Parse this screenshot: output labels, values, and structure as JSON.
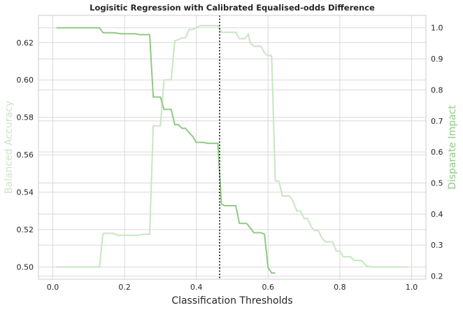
{
  "chart_data": {
    "type": "line",
    "title": "Logisitic Regression with Calibrated Equalised-odds Difference",
    "xlabel": "Classification Thresholds",
    "ylabel_left": "Balanced Accuracy",
    "ylabel_right": "Disparate Impact",
    "xlim": [
      -0.04,
      1.04
    ],
    "ylim_left": [
      0.4935,
      0.6345
    ],
    "ylim_right": [
      0.19,
      1.04
    ],
    "x_ticks": [
      "0.0",
      "0.2",
      "0.4",
      "0.6",
      "0.8",
      "1.0"
    ],
    "y_left_ticks": [
      "0.50",
      "0.52",
      "0.54",
      "0.56",
      "0.58",
      "0.60",
      "0.62"
    ],
    "y_right_ticks": [
      "0.2",
      "0.3",
      "0.4",
      "0.5",
      "0.6",
      "0.7",
      "0.8",
      "0.9",
      "1.0"
    ],
    "grid": true,
    "threshold_marker": 0.465,
    "series": [
      {
        "axis": "left",
        "color": "#c7e6c1",
        "points": [
          [
            0.01,
            0.5
          ],
          [
            0.13,
            0.5
          ],
          [
            0.14,
            0.518
          ],
          [
            0.17,
            0.518
          ],
          [
            0.18,
            0.517
          ],
          [
            0.24,
            0.517
          ],
          [
            0.25,
            0.5175
          ],
          [
            0.27,
            0.5175
          ],
          [
            0.28,
            0.5755
          ],
          [
            0.3,
            0.5755
          ],
          [
            0.31,
            0.6
          ],
          [
            0.33,
            0.6
          ],
          [
            0.34,
            0.621
          ],
          [
            0.35,
            0.6215
          ],
          [
            0.36,
            0.6225
          ],
          [
            0.37,
            0.6225
          ],
          [
            0.38,
            0.627
          ],
          [
            0.39,
            0.627
          ],
          [
            0.4,
            0.628
          ],
          [
            0.41,
            0.629
          ],
          [
            0.45,
            0.629
          ],
          [
            0.46,
            0.629
          ],
          [
            0.47,
            0.6255
          ],
          [
            0.51,
            0.6255
          ],
          [
            0.52,
            0.622
          ],
          [
            0.535,
            0.622
          ],
          [
            0.545,
            0.6245
          ],
          [
            0.55,
            0.62
          ],
          [
            0.56,
            0.618
          ],
          [
            0.575,
            0.618
          ],
          [
            0.58,
            0.618
          ],
          [
            0.59,
            0.6145
          ],
          [
            0.6,
            0.613
          ],
          [
            0.61,
            0.613
          ],
          [
            0.62,
            0.546
          ],
          [
            0.63,
            0.546
          ],
          [
            0.64,
            0.538
          ],
          [
            0.66,
            0.538
          ],
          [
            0.67,
            0.535
          ],
          [
            0.68,
            0.53
          ],
          [
            0.69,
            0.53
          ],
          [
            0.7,
            0.526
          ],
          [
            0.71,
            0.526
          ],
          [
            0.72,
            0.5215
          ],
          [
            0.73,
            0.5195
          ],
          [
            0.74,
            0.5195
          ],
          [
            0.75,
            0.5155
          ],
          [
            0.76,
            0.5135
          ],
          [
            0.78,
            0.5135
          ],
          [
            0.79,
            0.5085
          ],
          [
            0.8,
            0.5085
          ],
          [
            0.81,
            0.5055
          ],
          [
            0.83,
            0.5055
          ],
          [
            0.84,
            0.5035
          ],
          [
            0.85,
            0.5035
          ],
          [
            0.86,
            0.5035
          ],
          [
            0.875,
            0.5005
          ],
          [
            0.89,
            0.5
          ],
          [
            0.99,
            0.5
          ]
        ]
      },
      {
        "axis": "right",
        "color": "#8fca84",
        "points": [
          [
            0.01,
            1.0
          ],
          [
            0.13,
            1.0
          ],
          [
            0.14,
            0.984
          ],
          [
            0.17,
            0.984
          ],
          [
            0.19,
            0.981
          ],
          [
            0.23,
            0.981
          ],
          [
            0.24,
            0.978
          ],
          [
            0.27,
            0.978
          ],
          [
            0.28,
            0.777
          ],
          [
            0.3,
            0.777
          ],
          [
            0.31,
            0.737
          ],
          [
            0.33,
            0.737
          ],
          [
            0.34,
            0.688
          ],
          [
            0.35,
            0.688
          ],
          [
            0.36,
            0.676
          ],
          [
            0.37,
            0.676
          ],
          [
            0.38,
            0.662
          ],
          [
            0.39,
            0.65
          ],
          [
            0.4,
            0.631
          ],
          [
            0.41,
            0.631
          ],
          [
            0.42,
            0.631
          ],
          [
            0.43,
            0.628
          ],
          [
            0.46,
            0.628
          ],
          [
            0.47,
            0.431
          ],
          [
            0.48,
            0.427
          ],
          [
            0.51,
            0.427
          ],
          [
            0.52,
            0.37
          ],
          [
            0.54,
            0.37
          ],
          [
            0.55,
            0.356
          ],
          [
            0.56,
            0.34
          ],
          [
            0.58,
            0.34
          ],
          [
            0.59,
            0.335
          ],
          [
            0.6,
            0.227
          ],
          [
            0.61,
            0.21
          ],
          [
            0.62,
            0.21
          ]
        ]
      }
    ]
  }
}
